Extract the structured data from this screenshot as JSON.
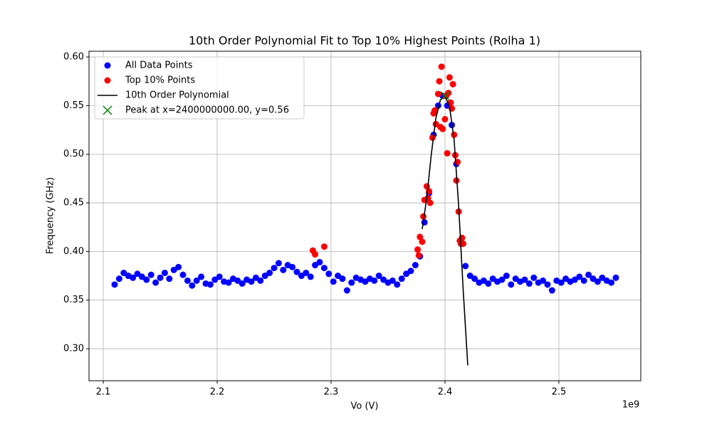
{
  "chart_data": {
    "type": "scatter",
    "title": "10th Order Polynomial Fit to Top 10% Highest Points (Rolha 1)",
    "x_label": "Vo (V)",
    "y_label": "Frequency (GHz)",
    "x_offset_label": "1e9",
    "xlim": [
      2087500000,
      2571900000
    ],
    "ylim": [
      0.2671,
      0.6059
    ],
    "xticks": [
      {
        "value": 2100000000,
        "label": "2.1"
      },
      {
        "value": 2200000000,
        "label": "2.2"
      },
      {
        "value": 2300000000,
        "label": "2.3"
      },
      {
        "value": 2400000000,
        "label": "2.4"
      },
      {
        "value": 2500000000,
        "label": "2.5"
      }
    ],
    "yticks": [
      {
        "value": 0.3,
        "label": "0.30"
      },
      0.35,
      {
        "value": 0.4,
        "label": "0.40"
      },
      0.45,
      {
        "value": 0.5,
        "label": "0.50"
      },
      0.55,
      {
        "value": 0.6,
        "label": "0.60"
      }
    ],
    "grid": true,
    "legend": "upper left",
    "series": [
      {
        "name": "All Data Points",
        "marker": "o",
        "color": "#0000ff",
        "x": [
          2110000000,
          2114000000,
          2118000000,
          2122000000,
          2126000000,
          2130000000,
          2134000000,
          2138000000,
          2142000000,
          2146000000,
          2150000000,
          2154000000,
          2158000000,
          2162000000,
          2166000000,
          2170000000,
          2174000000,
          2178000000,
          2182000000,
          2186000000,
          2190000000,
          2194000000,
          2198000000,
          2202000000,
          2206000000,
          2210000000,
          2214000000,
          2218000000,
          2222000000,
          2226000000,
          2230000000,
          2234000000,
          2238000000,
          2242000000,
          2246000000,
          2250000000,
          2254000000,
          2258000000,
          2262000000,
          2266000000,
          2270000000,
          2274000000,
          2278000000,
          2282000000,
          2286000000,
          2290000000,
          2294000000,
          2298000000,
          2302000000,
          2306000000,
          2310000000,
          2314000000,
          2318000000,
          2322000000,
          2326000000,
          2330000000,
          2334000000,
          2338000000,
          2342000000,
          2346000000,
          2350000000,
          2354000000,
          2358000000,
          2362000000,
          2366000000,
          2370000000,
          2374000000,
          2378000000,
          2382000000,
          2386000000,
          2390000000,
          2394000000,
          2398000000,
          2402000000,
          2406000000,
          2410000000,
          2414000000,
          2418000000,
          2422000000,
          2426000000,
          2430000000,
          2434000000,
          2438000000,
          2442000000,
          2446000000,
          2450000000,
          2454000000,
          2458000000,
          2462000000,
          2466000000,
          2470000000,
          2474000000,
          2478000000,
          2482000000,
          2486000000,
          2490000000,
          2494000000,
          2498000000,
          2502000000,
          2506000000,
          2510000000,
          2514000000,
          2518000000,
          2522000000,
          2526000000,
          2530000000,
          2534000000,
          2538000000,
          2542000000,
          2546000000,
          2550000000
        ],
        "values": [
          0.366,
          0.372,
          0.378,
          0.375,
          0.373,
          0.377,
          0.374,
          0.371,
          0.376,
          0.368,
          0.373,
          0.378,
          0.372,
          0.381,
          0.384,
          0.376,
          0.37,
          0.365,
          0.37,
          0.374,
          0.367,
          0.366,
          0.371,
          0.374,
          0.369,
          0.368,
          0.372,
          0.37,
          0.367,
          0.371,
          0.369,
          0.373,
          0.37,
          0.375,
          0.378,
          0.383,
          0.388,
          0.381,
          0.386,
          0.384,
          0.379,
          0.375,
          0.378,
          0.374,
          0.386,
          0.389,
          0.383,
          0.377,
          0.369,
          0.375,
          0.372,
          0.36,
          0.368,
          0.373,
          0.371,
          0.369,
          0.372,
          0.37,
          0.375,
          0.371,
          0.368,
          0.37,
          0.366,
          0.372,
          0.377,
          0.38,
          0.386,
          0.395,
          0.43,
          0.46,
          0.52,
          0.55,
          0.56,
          0.55,
          0.53,
          0.49,
          0.41,
          0.385,
          0.375,
          0.372,
          0.368,
          0.37,
          0.367,
          0.372,
          0.369,
          0.371,
          0.375,
          0.366,
          0.372,
          0.369,
          0.371,
          0.367,
          0.373,
          0.368,
          0.37,
          0.366,
          0.36,
          0.37,
          0.368,
          0.372,
          0.369,
          0.371,
          0.374,
          0.37,
          0.376,
          0.372,
          0.369,
          0.373,
          0.37,
          0.368,
          0.373
        ]
      },
      {
        "name": "Top 10% Points",
        "marker": "o",
        "color": "#ff0000",
        "x": [
          2284000000,
          2286000000,
          2294000000,
          2376000000,
          2377000000,
          2378000000,
          2380000000,
          2381000000,
          2382000000,
          2384000000,
          2385000000,
          2386000000,
          2387000000,
          2389000000,
          2390000000,
          2391000000,
          2392000000,
          2394000000,
          2395000000,
          2396000000,
          2397000000,
          2398000000,
          2400000000,
          2401000000,
          2402000000,
          2403000000,
          2404000000,
          2405000000,
          2406000000,
          2407000000,
          2408000000,
          2409000000,
          2410000000,
          2411000000,
          2412000000,
          2413000000,
          2414000000,
          2415000000,
          2416000000
        ],
        "values": [
          0.401,
          0.397,
          0.405,
          0.402,
          0.396,
          0.415,
          0.41,
          0.436,
          0.453,
          0.467,
          0.455,
          0.462,
          0.45,
          0.517,
          0.542,
          0.545,
          0.531,
          0.562,
          0.575,
          0.528,
          0.59,
          0.526,
          0.536,
          0.56,
          0.501,
          0.563,
          0.579,
          0.553,
          0.547,
          0.572,
          0.52,
          0.499,
          0.473,
          0.492,
          0.441,
          0.411,
          0.408,
          0.414,
          0.408
        ]
      },
      {
        "name": "10th Order Polynomial",
        "marker": "-",
        "color": "#000000",
        "x": [
          2380000000,
          2384000000,
          2388000000,
          2392000000,
          2396000000,
          2400000000,
          2404000000,
          2408000000,
          2412000000,
          2416000000,
          2420000000
        ],
        "values": [
          0.423,
          0.455,
          0.5,
          0.537,
          0.556,
          0.56,
          0.549,
          0.515,
          0.447,
          0.36,
          0.283
        ]
      },
      {
        "name": "Peak at x=2400000000.00, y=0.56",
        "marker": "x",
        "color": "#008000",
        "x": [
          2400000000
        ],
        "values": [
          0.56
        ]
      }
    ]
  }
}
